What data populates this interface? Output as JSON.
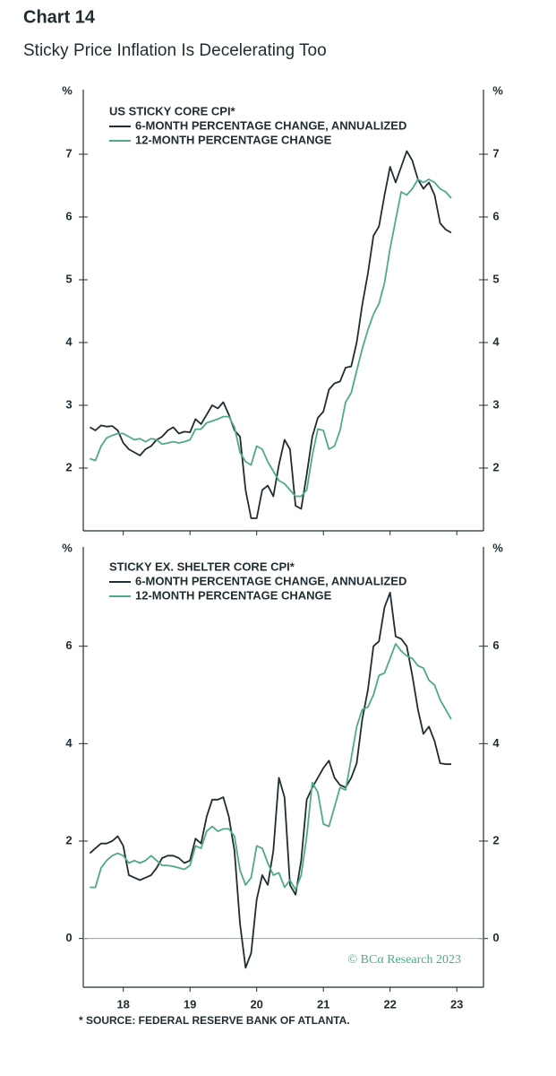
{
  "title": "Chart 14",
  "subtitle": "Sticky Price Inflation Is Decelerating Too",
  "footnote": "* SOURCE: FEDERAL RESERVE BANK OF ATLANTA.",
  "chart_data": [
    {
      "type": "line",
      "legend_title": "US STICKY CORE CPI*",
      "y_unit": "%",
      "x": [
        2018.0,
        2018.083,
        2018.167,
        2018.25,
        2018.333,
        2018.417,
        2018.5,
        2018.583,
        2018.667,
        2018.75,
        2018.833,
        2018.917,
        2019.0,
        2019.083,
        2019.167,
        2019.25,
        2019.333,
        2019.417,
        2019.5,
        2019.583,
        2019.667,
        2019.75,
        2019.833,
        2019.917,
        2020.0,
        2020.083,
        2020.167,
        2020.25,
        2020.333,
        2020.417,
        2020.5,
        2020.583,
        2020.667,
        2020.75,
        2020.833,
        2020.917,
        2021.0,
        2021.083,
        2021.167,
        2021.25,
        2021.333,
        2021.417,
        2021.5,
        2021.583,
        2021.667,
        2021.75,
        2021.833,
        2021.917,
        2022.0,
        2022.083,
        2022.167,
        2022.25,
        2022.333,
        2022.417,
        2022.5,
        2022.583,
        2022.667,
        2022.75,
        2022.833,
        2022.917,
        2023.0,
        2023.083,
        2023.167,
        2023.25,
        2023.333,
        2023.417
      ],
      "series": [
        {
          "name": "6-MONTH PERCENTAGE CHANGE, ANNUALIZED",
          "color": "#1f2d33",
          "values": [
            2.65,
            2.6,
            2.68,
            2.66,
            2.67,
            2.6,
            2.4,
            2.3,
            2.25,
            2.2,
            2.3,
            2.35,
            2.45,
            2.5,
            2.6,
            2.65,
            2.55,
            2.58,
            2.57,
            2.78,
            2.7,
            2.85,
            3.0,
            2.95,
            3.05,
            2.85,
            2.6,
            2.5,
            1.65,
            1.2,
            1.2,
            1.65,
            1.72,
            1.55,
            2.05,
            2.45,
            2.3,
            1.4,
            1.35,
            1.9,
            2.5,
            2.8,
            2.9,
            3.25,
            3.35,
            3.38,
            3.6,
            3.62,
            4.0,
            4.6,
            5.1,
            5.7,
            5.85,
            6.35,
            6.8,
            6.55,
            6.8,
            7.05,
            6.9,
            6.6,
            6.45,
            6.55,
            6.35,
            5.9,
            5.8,
            5.75
          ]
        },
        {
          "name": "12-MONTH PERCENTAGE CHANGE",
          "color": "#4fa98a",
          "values": [
            2.15,
            2.12,
            2.35,
            2.48,
            2.52,
            2.55,
            2.55,
            2.5,
            2.45,
            2.47,
            2.42,
            2.47,
            2.45,
            2.38,
            2.4,
            2.42,
            2.4,
            2.42,
            2.45,
            2.62,
            2.62,
            2.72,
            2.75,
            2.78,
            2.82,
            2.82,
            2.65,
            2.25,
            2.1,
            2.05,
            2.35,
            2.3,
            2.1,
            1.95,
            1.8,
            1.75,
            1.65,
            1.55,
            1.55,
            1.65,
            2.2,
            2.62,
            2.6,
            2.3,
            2.35,
            2.6,
            3.05,
            3.2,
            3.55,
            3.9,
            4.2,
            4.45,
            4.62,
            4.95,
            5.5,
            5.95,
            6.4,
            6.35,
            6.45,
            6.6,
            6.55,
            6.6,
            6.55,
            6.45,
            6.4,
            6.3
          ]
        }
      ],
      "xlim": [
        2017.9,
        2023.9
      ],
      "xticks": [
        {
          "value": 2018.5,
          "label": "18"
        },
        {
          "value": 2019.5,
          "label": "19"
        },
        {
          "value": 2020.5,
          "label": "20"
        },
        {
          "value": 2021.5,
          "label": "21"
        },
        {
          "value": 2022.5,
          "label": "22"
        },
        {
          "value": 2023.5,
          "label": "23"
        }
      ],
      "ylim": [
        1,
        8
      ],
      "yticks": [
        2,
        3,
        4,
        5,
        6,
        7
      ]
    },
    {
      "type": "line",
      "legend_title": "STICKY EX. SHELTER CORE CPI*",
      "y_unit": "%",
      "annotation": "© BCα Research 2023",
      "zero_line": true,
      "x": [
        2018.0,
        2018.083,
        2018.167,
        2018.25,
        2018.333,
        2018.417,
        2018.5,
        2018.583,
        2018.667,
        2018.75,
        2018.833,
        2018.917,
        2019.0,
        2019.083,
        2019.167,
        2019.25,
        2019.333,
        2019.417,
        2019.5,
        2019.583,
        2019.667,
        2019.75,
        2019.833,
        2019.917,
        2020.0,
        2020.083,
        2020.167,
        2020.25,
        2020.333,
        2020.417,
        2020.5,
        2020.583,
        2020.667,
        2020.75,
        2020.833,
        2020.917,
        2021.0,
        2021.083,
        2021.167,
        2021.25,
        2021.333,
        2021.417,
        2021.5,
        2021.583,
        2021.667,
        2021.75,
        2021.833,
        2021.917,
        2022.0,
        2022.083,
        2022.167,
        2022.25,
        2022.333,
        2022.417,
        2022.5,
        2022.583,
        2022.667,
        2022.75,
        2022.833,
        2022.917,
        2023.0,
        2023.083,
        2023.167,
        2023.25,
        2023.333,
        2023.417
      ],
      "series": [
        {
          "name": "6-MONTH PERCENTAGE CHANGE, ANNUALIZED",
          "color": "#1f2d33",
          "values": [
            1.75,
            1.85,
            1.95,
            1.95,
            2.0,
            2.1,
            1.9,
            1.3,
            1.25,
            1.2,
            1.25,
            1.3,
            1.45,
            1.65,
            1.7,
            1.7,
            1.65,
            1.55,
            1.6,
            2.05,
            1.95,
            2.5,
            2.85,
            2.85,
            2.9,
            2.5,
            1.8,
            0.3,
            -0.6,
            -0.3,
            0.8,
            1.3,
            1.1,
            1.8,
            3.3,
            2.9,
            1.1,
            0.9,
            1.6,
            2.85,
            3.1,
            3.3,
            3.5,
            3.65,
            3.3,
            3.15,
            3.1,
            3.3,
            3.6,
            4.5,
            5.1,
            6.0,
            6.1,
            6.8,
            7.1,
            6.2,
            6.15,
            6.0,
            5.4,
            4.7,
            4.2,
            4.35,
            4.05,
            3.6,
            3.58,
            3.58
          ]
        },
        {
          "name": "12-MONTH PERCENTAGE CHANGE",
          "color": "#4fa98a",
          "values": [
            1.05,
            1.05,
            1.45,
            1.6,
            1.7,
            1.75,
            1.7,
            1.55,
            1.6,
            1.55,
            1.6,
            1.7,
            1.6,
            1.5,
            1.5,
            1.48,
            1.45,
            1.42,
            1.5,
            1.9,
            1.85,
            2.2,
            2.3,
            2.2,
            2.25,
            2.25,
            2.1,
            1.4,
            1.1,
            1.25,
            1.9,
            1.85,
            1.55,
            1.3,
            1.35,
            1.05,
            1.2,
            1.0,
            1.3,
            2.1,
            3.2,
            3.0,
            2.35,
            2.3,
            2.7,
            3.1,
            3.05,
            3.7,
            4.35,
            4.7,
            4.75,
            5.0,
            5.4,
            5.45,
            5.75,
            6.05,
            5.9,
            5.8,
            5.75,
            5.6,
            5.55,
            5.3,
            5.2,
            4.9,
            4.7,
            4.5
          ]
        }
      ],
      "xlim": [
        2017.9,
        2023.9
      ],
      "xticks": [
        {
          "value": 2018.5,
          "label": "18"
        },
        {
          "value": 2019.5,
          "label": "19"
        },
        {
          "value": 2020.5,
          "label": "20"
        },
        {
          "value": 2021.5,
          "label": "21"
        },
        {
          "value": 2022.5,
          "label": "22"
        },
        {
          "value": 2023.5,
          "label": "23"
        }
      ],
      "ylim": [
        -1,
        8
      ],
      "yticks": [
        0,
        2,
        4,
        6
      ]
    }
  ]
}
